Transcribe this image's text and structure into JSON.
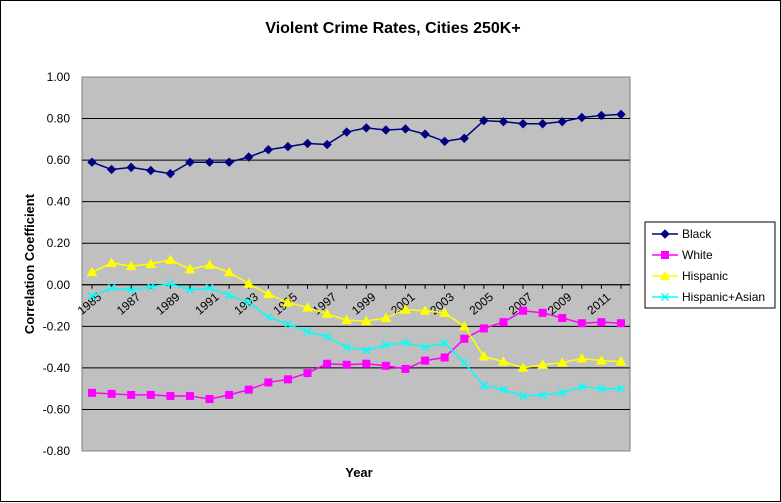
{
  "chart_data": {
    "type": "line",
    "title": "Violent Crime Rates, Cities 250K+",
    "xlabel": "Year",
    "ylabel": "Correlation Coefficient",
    "ylim": [
      -0.8,
      1.0
    ],
    "y_ticks": [
      "1.00",
      "0.80",
      "0.60",
      "0.40",
      "0.20",
      "0.00",
      "-0.20",
      "-0.40",
      "-0.60",
      "-0.80"
    ],
    "y_tick_values": [
      1.0,
      0.8,
      0.6,
      0.4,
      0.2,
      0.0,
      -0.2,
      -0.4,
      -0.6,
      -0.8
    ],
    "x": [
      1985,
      1986,
      1987,
      1988,
      1989,
      1990,
      1991,
      1992,
      1993,
      1994,
      1995,
      1996,
      1997,
      1998,
      1999,
      2000,
      2001,
      2002,
      2003,
      2004,
      2005,
      2006,
      2007,
      2008,
      2009,
      2010,
      2011,
      2012
    ],
    "x_tick_labels": [
      "1985",
      "1987",
      "1989",
      "1991",
      "1993",
      "1995",
      "1997",
      "1999",
      "2001",
      "2003",
      "2005",
      "2007",
      "2009",
      "2011"
    ],
    "grid": true,
    "legend_position": "right",
    "series": [
      {
        "name": "Black",
        "color": "#000080",
        "marker": "diamond",
        "values": [
          0.59,
          0.555,
          0.565,
          0.55,
          0.535,
          0.59,
          0.59,
          0.59,
          0.615,
          0.65,
          0.665,
          0.68,
          0.675,
          0.735,
          0.755,
          0.745,
          0.75,
          0.725,
          0.69,
          0.705,
          0.79,
          0.785,
          0.775,
          0.775,
          0.785,
          0.805,
          0.815,
          0.82
        ]
      },
      {
        "name": "White",
        "color": "#ff00ff",
        "marker": "square",
        "values": [
          -0.52,
          -0.525,
          -0.53,
          -0.53,
          -0.535,
          -0.535,
          -0.55,
          -0.53,
          -0.505,
          -0.47,
          -0.455,
          -0.425,
          -0.38,
          -0.385,
          -0.38,
          -0.39,
          -0.405,
          -0.365,
          -0.35,
          -0.26,
          -0.21,
          -0.18,
          -0.125,
          -0.135,
          -0.16,
          -0.185,
          -0.18,
          -0.185
        ]
      },
      {
        "name": "Hispanic",
        "color": "#ffff00",
        "marker": "triangle",
        "values": [
          0.06,
          0.105,
          0.09,
          0.1,
          0.12,
          0.075,
          0.095,
          0.06,
          0.005,
          -0.045,
          -0.085,
          -0.11,
          -0.14,
          -0.17,
          -0.175,
          -0.16,
          -0.12,
          -0.125,
          -0.135,
          -0.2,
          -0.345,
          -0.37,
          -0.4,
          -0.385,
          -0.375,
          -0.355,
          -0.365,
          -0.37
        ]
      },
      {
        "name": "Hispanic+Asian",
        "color": "#00ffff",
        "marker": "x",
        "values": [
          -0.055,
          -0.015,
          -0.025,
          -0.01,
          0.005,
          -0.025,
          -0.015,
          -0.05,
          -0.085,
          -0.155,
          -0.19,
          -0.225,
          -0.25,
          -0.3,
          -0.315,
          -0.29,
          -0.28,
          -0.3,
          -0.28,
          -0.375,
          -0.485,
          -0.505,
          -0.535,
          -0.53,
          -0.52,
          -0.49,
          -0.5,
          -0.5
        ]
      }
    ]
  }
}
